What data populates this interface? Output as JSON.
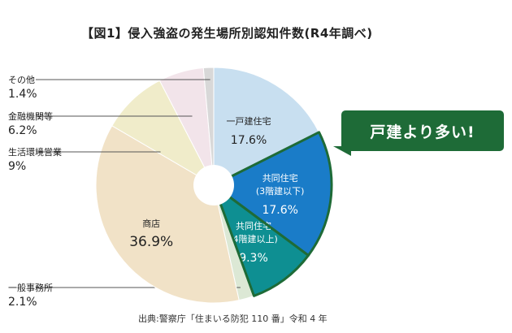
{
  "chart_data": {
    "type": "pie",
    "title": "【図1】侵入強盗の発生場所別認知件数(R4年調べ)",
    "unit": "%",
    "slices": [
      {
        "name": "一戸建住宅",
        "value": 17.6,
        "color": "#c8dff0",
        "label_color": "#222222",
        "highlight": false,
        "outside": false
      },
      {
        "name": "共同住宅\n(3階建以下)",
        "value": 17.6,
        "color": "#1a7cc8",
        "label_color": "#ffffff",
        "highlight": true,
        "outside": false
      },
      {
        "name": "共同住宅\n(4階建以上)",
        "value": 9.3,
        "color": "#0e8f92",
        "label_color": "#ffffff",
        "highlight": true,
        "outside": false
      },
      {
        "name": "一般事務所",
        "value": 2.1,
        "color": "#dce8d5",
        "label_color": "#222222",
        "highlight": false,
        "outside": true
      },
      {
        "name": "商店",
        "value": 36.9,
        "color": "#f1e2c7",
        "label_color": "#222222",
        "highlight": false,
        "outside": false
      },
      {
        "name": "生活環境営業",
        "value": 9.0,
        "color": "#f0ecca",
        "label_color": "#222222",
        "highlight": false,
        "outside": true
      },
      {
        "name": "金融機関等",
        "value": 6.2,
        "color": "#f2e4ea",
        "label_color": "#222222",
        "highlight": false,
        "outside": true
      },
      {
        "name": "その他",
        "value": 1.4,
        "color": "#d8d8d8",
        "label_color": "#222222",
        "highlight": false,
        "outside": true
      }
    ],
    "callout": "戸建より多い!",
    "source": "出典:警察庁「住まいる防犯 110 番」令和 4 年",
    "highlight_color": "#1e6b37"
  }
}
